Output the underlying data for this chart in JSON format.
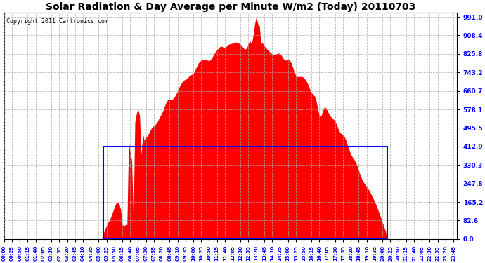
{
  "title": "Solar Radiation & Day Average per Minute W/m2 (Today) 20110703",
  "copyright": "Copyright 2011 Cartronics.com",
  "yticks": [
    0.0,
    82.6,
    165.2,
    247.8,
    330.3,
    412.9,
    495.5,
    578.1,
    660.7,
    743.2,
    825.8,
    908.4,
    991.0
  ],
  "ymax": 1010.0,
  "ymin": 0.0,
  "fill_color": "red",
  "box_color": "blue",
  "background_color": "white",
  "grid_color": "#aaaaaa",
  "title_fontsize": 10,
  "copyright_fontsize": 6,
  "xtick_every": 5,
  "figwidth": 6.9,
  "figheight": 3.75,
  "dpi": 100
}
